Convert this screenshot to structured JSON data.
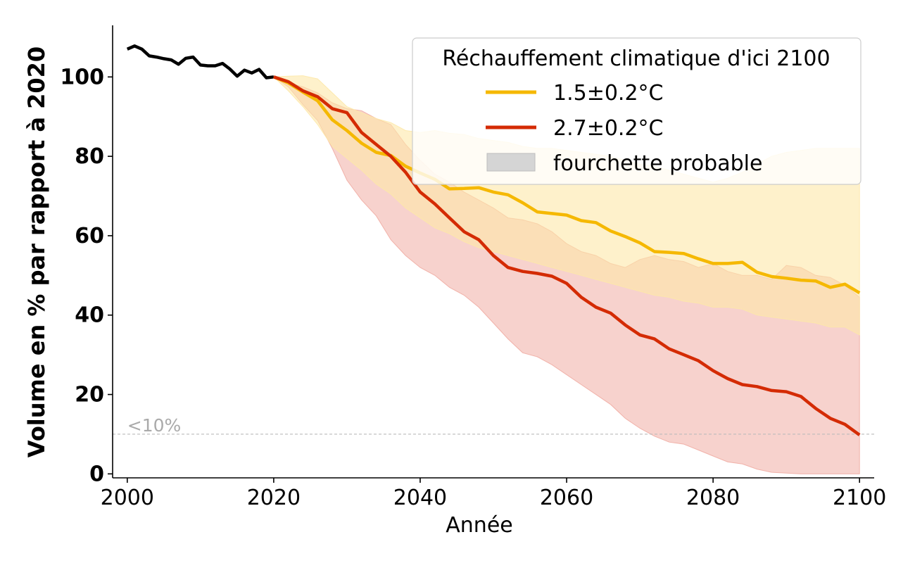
{
  "chart_data": {
    "type": "line",
    "title": "",
    "xlabel": "Année",
    "ylabel": "Volume en % par rapport à 2020",
    "xlim": [
      1998,
      2102
    ],
    "ylim": [
      -1,
      113
    ],
    "xticks": [
      2000,
      2020,
      2040,
      2060,
      2080,
      2100
    ],
    "yticks": [
      0,
      20,
      40,
      60,
      80,
      100
    ],
    "grid": false,
    "legend": {
      "title": "Réchauffement climatique d'ici 2100",
      "position": "top-right",
      "entries": [
        "1.5±0.2°C",
        "2.7±0.2°C",
        "fourchette probable"
      ]
    },
    "reference_line": {
      "y": 10,
      "label": "<10%"
    },
    "colors": {
      "historical": "#000000",
      "scenario_low": "#f5b800",
      "scenario_high": "#d42b04",
      "band_low": "#fde8a8",
      "band_high": "#efa59b",
      "band_overlap": "#f3c09d",
      "legend_patch": "#d5d5d5",
      "reference": "#bbbbbb"
    },
    "historical": {
      "x": [
        2000,
        2001,
        2002,
        2003,
        2004,
        2005,
        2006,
        2007,
        2008,
        2009,
        2010,
        2011,
        2012,
        2013,
        2014,
        2015,
        2016,
        2017,
        2018,
        2019,
        2020
      ],
      "y": [
        107,
        107.8,
        107,
        105.3,
        105,
        104.6,
        104.3,
        103.2,
        104.7,
        105,
        103,
        102.8,
        102.8,
        103.4,
        102,
        100.2,
        101.7,
        101,
        101.9,
        99.8,
        100
      ]
    },
    "series": [
      {
        "name": "1.5±0.2°C",
        "x": [
          2020,
          2022,
          2024,
          2026,
          2028,
          2030,
          2032,
          2034,
          2036,
          2038,
          2040,
          2042,
          2044,
          2046,
          2048,
          2050,
          2052,
          2054,
          2056,
          2058,
          2060,
          2062,
          2064,
          2066,
          2068,
          2070,
          2072,
          2074,
          2076,
          2078,
          2080,
          2082,
          2084,
          2086,
          2088,
          2090,
          2092,
          2094,
          2096,
          2098,
          2100
        ],
        "y": [
          100,
          98.5,
          96.2,
          94,
          89.2,
          86.5,
          83.3,
          81,
          80.2,
          77.5,
          75.8,
          74.2,
          71.8,
          71.9,
          72.1,
          71,
          70.3,
          68.3,
          66,
          65.6,
          65.2,
          63.8,
          63.3,
          61.2,
          59.8,
          58.2,
          56,
          55.8,
          55.5,
          54.2,
          53,
          53,
          53.3,
          50.8,
          49.7,
          49.3,
          48.8,
          48.6,
          47,
          47.8,
          45.6
        ],
        "lower": [
          100,
          96.5,
          92.5,
          88,
          82.5,
          79.5,
          76.5,
          73,
          70.5,
          67,
          64.5,
          62,
          60.5,
          58.5,
          57,
          56,
          55,
          54,
          53,
          52,
          51,
          50,
          49,
          48,
          47,
          46,
          45,
          44.5,
          43.5,
          43,
          42,
          42,
          41.5,
          40,
          39.5,
          39,
          38.5,
          38,
          37,
          37,
          35
        ],
        "upper": [
          100,
          100.2,
          100.3,
          99.5,
          96,
          92.5,
          91,
          89.5,
          88.5,
          86.5,
          86,
          86.5,
          85.8,
          85.5,
          84.5,
          84,
          83.5,
          82.5,
          82,
          82,
          81.5,
          81,
          80.5,
          80,
          79,
          78,
          77.5,
          76.5,
          75.5,
          74.5,
          73.5,
          74.5,
          76,
          78,
          80,
          81,
          81.5,
          82,
          82,
          82,
          82
        ]
      },
      {
        "name": "2.7±0.2°C",
        "x": [
          2020,
          2022,
          2024,
          2026,
          2028,
          2030,
          2032,
          2034,
          2036,
          2038,
          2040,
          2042,
          2044,
          2046,
          2048,
          2050,
          2052,
          2054,
          2056,
          2058,
          2060,
          2062,
          2064,
          2066,
          2068,
          2070,
          2072,
          2074,
          2076,
          2078,
          2080,
          2082,
          2084,
          2086,
          2088,
          2090,
          2092,
          2094,
          2096,
          2098,
          2100
        ],
        "y": [
          100,
          98.8,
          96.5,
          95,
          92,
          91,
          86,
          83,
          80,
          76,
          71,
          68,
          64.5,
          61,
          59,
          55,
          52,
          51,
          50.5,
          49.8,
          48,
          44.5,
          42,
          40.5,
          37.5,
          35,
          34,
          31.5,
          30,
          28.5,
          26,
          24,
          22.5,
          22,
          21,
          20.7,
          19.5,
          16.5,
          14,
          12.5,
          9.8
        ],
        "lower": [
          100,
          97.5,
          93,
          89,
          82,
          74,
          69,
          65,
          59,
          55,
          52,
          50,
          47,
          45,
          42,
          38,
          34,
          30.5,
          29.5,
          27.5,
          25,
          22.5,
          20,
          17.5,
          14,
          11.5,
          9.5,
          8,
          7.5,
          6,
          4.5,
          3,
          2.5,
          1.2,
          0.4,
          0.2,
          0,
          0,
          0,
          0,
          0
        ],
        "upper": [
          100,
          98.5,
          97.5,
          96,
          93.5,
          92,
          91.5,
          89.5,
          88,
          83,
          79,
          75.5,
          73.5,
          71,
          69,
          67,
          64.5,
          64,
          63,
          61,
          58,
          56,
          55,
          53,
          52,
          54,
          55,
          54,
          53.5,
          52,
          53,
          51,
          50,
          50,
          49,
          52.5,
          52,
          50,
          49.5,
          47.5,
          44.5
        ]
      }
    ]
  }
}
